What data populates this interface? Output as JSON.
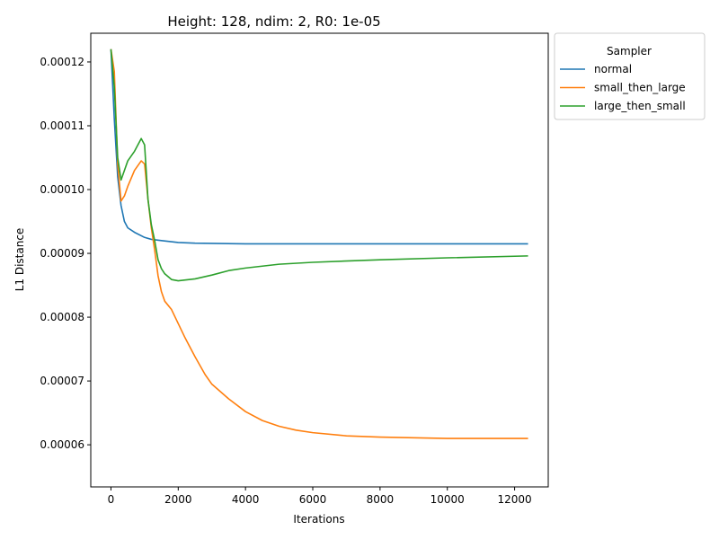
{
  "chart_data": {
    "type": "line",
    "title": "Height: 128, ndim: 2, R0: 1e-05",
    "xlabel": "Iterations",
    "ylabel": "L1 Distance",
    "xlim": [
      -600,
      13000
    ],
    "ylim": [
      5.34e-05,
      0.0001245
    ],
    "x_ticks": [
      0,
      2000,
      4000,
      6000,
      8000,
      10000,
      12000
    ],
    "x_tick_labels": [
      "0",
      "2000",
      "4000",
      "6000",
      "8000",
      "10000",
      "12000"
    ],
    "y_ticks": [
      6e-05,
      7e-05,
      8e-05,
      9e-05,
      0.0001,
      0.00011,
      0.00012
    ],
    "y_tick_labels": [
      "0.00006",
      "0.00007",
      "0.00008",
      "0.00009",
      "0.00010",
      "0.00011",
      "0.00012"
    ],
    "grid": false,
    "legend": {
      "title": "Sampler",
      "placement": "outside-upper-right"
    },
    "series": [
      {
        "name": "normal",
        "color": "#1f77b4",
        "points": [
          [
            0,
            0.000122
          ],
          [
            100,
            0.000111
          ],
          [
            200,
            0.000102
          ],
          [
            300,
            9.75e-05
          ],
          [
            400,
            9.5e-05
          ],
          [
            500,
            9.4e-05
          ],
          [
            700,
            9.33e-05
          ],
          [
            1000,
            9.25e-05
          ],
          [
            1200,
            9.22e-05
          ],
          [
            1500,
            9.2e-05
          ],
          [
            2000,
            9.17e-05
          ],
          [
            2500,
            9.16e-05
          ],
          [
            4000,
            9.15e-05
          ],
          [
            12400,
            9.15e-05
          ]
        ]
      },
      {
        "name": "small_then_large",
        "color": "#ff7f0e",
        "points": [
          [
            0,
            0.000122
          ],
          [
            100,
            0.0001185
          ],
          [
            200,
            0.000104
          ],
          [
            300,
            9.82e-05
          ],
          [
            400,
            9.9e-05
          ],
          [
            500,
            0.0001005
          ],
          [
            700,
            0.000103
          ],
          [
            900,
            0.0001045
          ],
          [
            1000,
            0.000104
          ],
          [
            1100,
            9.85e-05
          ],
          [
            1200,
            9.4e-05
          ],
          [
            1300,
            9.05e-05
          ],
          [
            1400,
            8.65e-05
          ],
          [
            1500,
            8.4e-05
          ],
          [
            1600,
            8.25e-05
          ],
          [
            1800,
            8.12e-05
          ],
          [
            2000,
            7.9e-05
          ],
          [
            2200,
            7.68e-05
          ],
          [
            2500,
            7.38e-05
          ],
          [
            2800,
            7.1e-05
          ],
          [
            3000,
            6.95e-05
          ],
          [
            3500,
            6.72e-05
          ],
          [
            4000,
            6.52e-05
          ],
          [
            4500,
            6.38e-05
          ],
          [
            5000,
            6.29e-05
          ],
          [
            5500,
            6.23e-05
          ],
          [
            6000,
            6.19e-05
          ],
          [
            7000,
            6.14e-05
          ],
          [
            8000,
            6.12e-05
          ],
          [
            9000,
            6.11e-05
          ],
          [
            10000,
            6.1e-05
          ],
          [
            12400,
            6.1e-05
          ]
        ]
      },
      {
        "name": "large_then_small",
        "color": "#2ca02c",
        "points": [
          [
            0,
            0.000122
          ],
          [
            100,
            0.000116
          ],
          [
            200,
            0.000105
          ],
          [
            300,
            0.0001015
          ],
          [
            400,
            0.000103
          ],
          [
            500,
            0.0001045
          ],
          [
            700,
            0.000106
          ],
          [
            900,
            0.000108
          ],
          [
            1000,
            0.000107
          ],
          [
            1100,
            9.85e-05
          ],
          [
            1200,
            9.45e-05
          ],
          [
            1300,
            9.2e-05
          ],
          [
            1400,
            8.9e-05
          ],
          [
            1500,
            8.76e-05
          ],
          [
            1600,
            8.68e-05
          ],
          [
            1800,
            8.59e-05
          ],
          [
            2000,
            8.57e-05
          ],
          [
            2500,
            8.6e-05
          ],
          [
            3000,
            8.66e-05
          ],
          [
            3500,
            8.73e-05
          ],
          [
            4000,
            8.77e-05
          ],
          [
            5000,
            8.83e-05
          ],
          [
            6000,
            8.86e-05
          ],
          [
            8000,
            8.9e-05
          ],
          [
            10000,
            8.93e-05
          ],
          [
            12400,
            8.96e-05
          ]
        ]
      }
    ]
  }
}
